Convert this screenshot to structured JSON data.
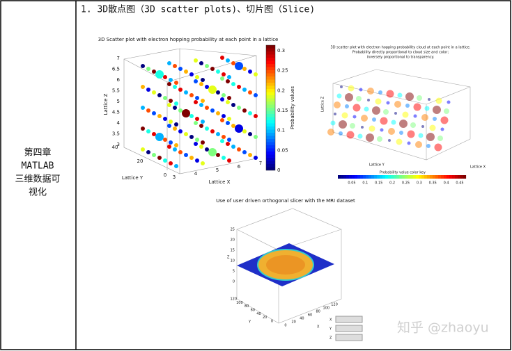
{
  "left_cell": [
    "第四章",
    "MATLAB",
    "三维数据可",
    "视化"
  ],
  "heading": "1. 3D散点图（3D scatter plots)、切片图（Slice)",
  "figure1": {
    "title": "3D Scatter plot with electron hopping probability at each point in a lattice",
    "xlabel": "Lattice X",
    "ylabel": "Lattice Y",
    "zlabel": "Lattice Z",
    "zticks": [
      "3",
      "3.5",
      "4",
      "4.5",
      "5",
      "5.5",
      "6",
      "6.5",
      "7"
    ],
    "xticks": [
      "3",
      "4",
      "5",
      "6",
      "7"
    ],
    "yticks": [
      "0",
      "20",
      "40"
    ],
    "colorbar_label": "Probability values",
    "colorbar_ticks": [
      "0",
      "0.05",
      "0.1",
      "0.15",
      "0.2",
      "0.25",
      "0.3"
    ]
  },
  "figure2": {
    "title": [
      "3D scatter plot with electron hopping probability cloud at each point in a lattice.",
      "Probability directly proportional to cloud size and color;",
      "inversely proportional to transparency."
    ],
    "xlabel": "Lattice X",
    "ylabel": "Lattice Y",
    "zlabel": "Lattice Z",
    "colorbar_title": "Probability value color key",
    "colorbar_ticks": [
      "0.05",
      "0.1",
      "0.15",
      "0.2",
      "0.25",
      "0.3",
      "0.35",
      "0.4",
      "0.45"
    ]
  },
  "figure3": {
    "title": "Use of user driven orthogonal slicer with the MRI dataset",
    "zlabel": "Z",
    "ylabel": "Y",
    "xlabel": "X",
    "zticks": [
      "0",
      "5",
      "10",
      "15",
      "20",
      "25"
    ],
    "yticks": [
      "0",
      "20",
      "40",
      "60",
      "80",
      "100",
      "120"
    ],
    "xticks": [
      "0",
      "20",
      "40",
      "60",
      "80",
      "100",
      "120"
    ],
    "slider_labels": [
      "X",
      "Y",
      "Z"
    ]
  },
  "watermark": "知乎 @zhaoyu"
}
